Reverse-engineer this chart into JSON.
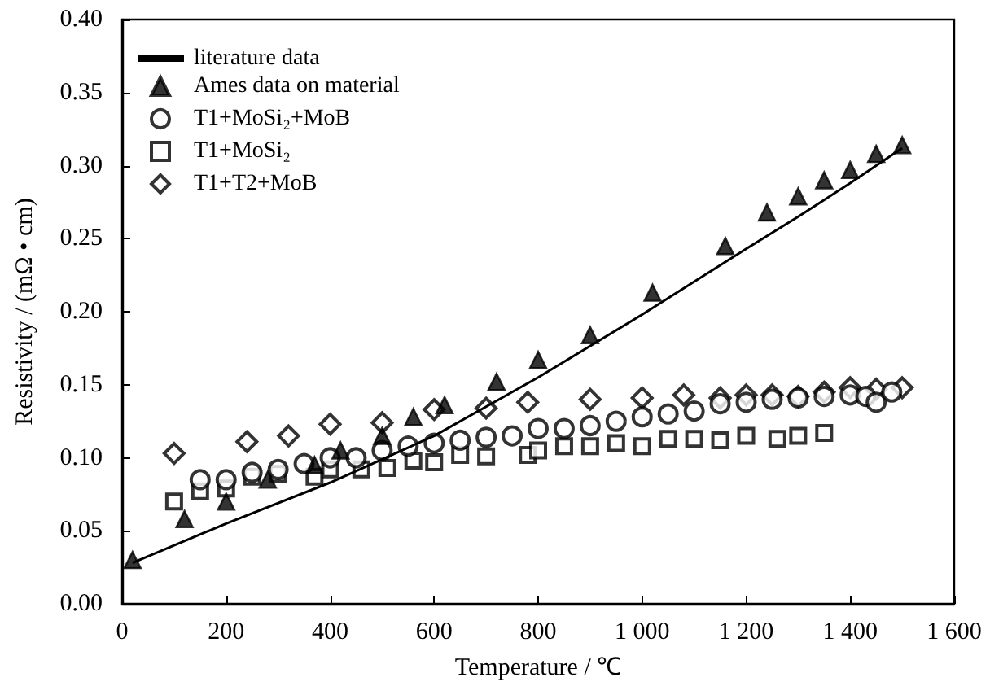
{
  "chart_data": {
    "type": "scatter",
    "xlabel": "Temperature / ℃",
    "ylabel": "Resistivity / (mΩ • cm)",
    "xlim": [
      0,
      1600
    ],
    "xticks": [
      0,
      200,
      400,
      600,
      800,
      {
        "value": 1000,
        "label": "1 000"
      },
      {
        "value": 1200,
        "label": "1 200"
      },
      {
        "value": 1400,
        "label": "1 400"
      },
      {
        "value": 1600,
        "label": "1 600"
      }
    ],
    "ylim": [
      0,
      0.4
    ],
    "yticks": [
      {
        "value": 0,
        "label": "0.00"
      },
      0.05,
      {
        "value": 0.1,
        "label": "0.10"
      },
      0.15,
      {
        "value": 0.2,
        "label": "0.20"
      },
      0.25,
      {
        "value": 0.3,
        "label": "0.30"
      },
      0.35,
      {
        "value": 0.4,
        "label": "0.40"
      }
    ],
    "grid": false,
    "legend": "top left",
    "series": [
      {
        "name": "literature data",
        "type": "line",
        "marker": "none",
        "line_style": "solid",
        "color": "#000000",
        "x": [
          20,
          200,
          400,
          600,
          800,
          1000,
          1200,
          1300,
          1400,
          1500
        ],
        "values": [
          0.028,
          0.055,
          0.083,
          0.115,
          0.155,
          0.198,
          0.243,
          0.265,
          0.288,
          0.312
        ]
      },
      {
        "name": "Ames data on material",
        "type": "scatter",
        "marker": "triangle",
        "color": "#000000",
        "x": [
          20,
          120,
          200,
          280,
          370,
          420,
          500,
          560,
          620,
          720,
          800,
          900,
          1020,
          1160,
          1240,
          1300,
          1350,
          1400,
          1450,
          1500
        ],
        "values": [
          0.03,
          0.058,
          0.07,
          0.085,
          0.095,
          0.105,
          0.115,
          0.128,
          0.136,
          0.152,
          0.167,
          0.184,
          0.213,
          0.245,
          0.268,
          0.279,
          0.29,
          0.297,
          0.308,
          0.314
        ]
      },
      {
        "name": "T1+MoSi₂+MoB",
        "type": "scatter",
        "marker": "circle",
        "color": "#000000",
        "x": [
          150,
          200,
          250,
          300,
          350,
          400,
          450,
          500,
          550,
          600,
          650,
          700,
          750,
          800,
          850,
          900,
          950,
          1000,
          1050,
          1100,
          1150,
          1200,
          1250,
          1300,
          1350,
          1400,
          1430,
          1450,
          1480
        ],
        "values": [
          0.085,
          0.085,
          0.09,
          0.092,
          0.096,
          0.1,
          0.1,
          0.105,
          0.108,
          0.11,
          0.112,
          0.114,
          0.115,
          0.12,
          0.12,
          0.122,
          0.125,
          0.128,
          0.13,
          0.132,
          0.137,
          0.138,
          0.14,
          0.141,
          0.142,
          0.143,
          0.142,
          0.138,
          0.145
        ]
      },
      {
        "name": "T1+MoSi₂",
        "type": "scatter",
        "marker": "square",
        "color": "#000000",
        "x": [
          100,
          150,
          200,
          250,
          300,
          370,
          400,
          460,
          510,
          560,
          600,
          650,
          700,
          780,
          800,
          850,
          900,
          950,
          1000,
          1050,
          1100,
          1150,
          1200,
          1260,
          1300,
          1350
        ],
        "values": [
          0.07,
          0.077,
          0.079,
          0.087,
          0.089,
          0.087,
          0.092,
          0.092,
          0.093,
          0.098,
          0.097,
          0.102,
          0.101,
          0.102,
          0.105,
          0.108,
          0.108,
          0.11,
          0.108,
          0.113,
          0.113,
          0.112,
          0.115,
          0.113,
          0.115,
          0.117
        ]
      },
      {
        "name": "T1+T2+MoB",
        "type": "scatter",
        "marker": "diamond",
        "color": "#000000",
        "x": [
          100,
          240,
          320,
          400,
          500,
          600,
          700,
          780,
          900,
          1000,
          1080,
          1150,
          1200,
          1250,
          1300,
          1350,
          1400,
          1450,
          1500
        ],
        "values": [
          0.103,
          0.111,
          0.115,
          0.123,
          0.124,
          0.133,
          0.134,
          0.138,
          0.14,
          0.141,
          0.143,
          0.141,
          0.143,
          0.143,
          0.142,
          0.145,
          0.148,
          0.147,
          0.148
        ]
      }
    ]
  }
}
